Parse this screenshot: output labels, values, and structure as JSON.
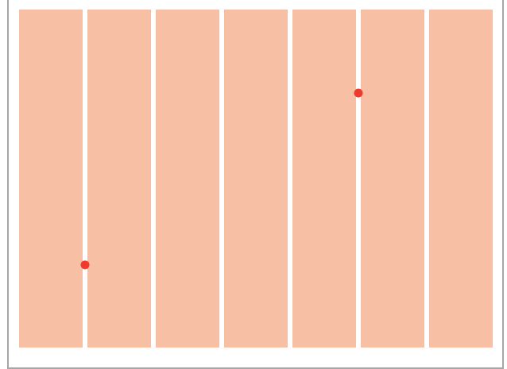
{
  "board": {
    "columns": 7,
    "panel_color": "#f7bfa4",
    "frame_color": "#a6a6a6",
    "background_color": "#ffffff"
  },
  "markers": {
    "color": "#ef3a2d",
    "items": [
      {
        "gap_after_column": 1,
        "level_from_top": 0.755
      },
      {
        "gap_after_column": 5,
        "level_from_top": 0.247
      }
    ]
  }
}
